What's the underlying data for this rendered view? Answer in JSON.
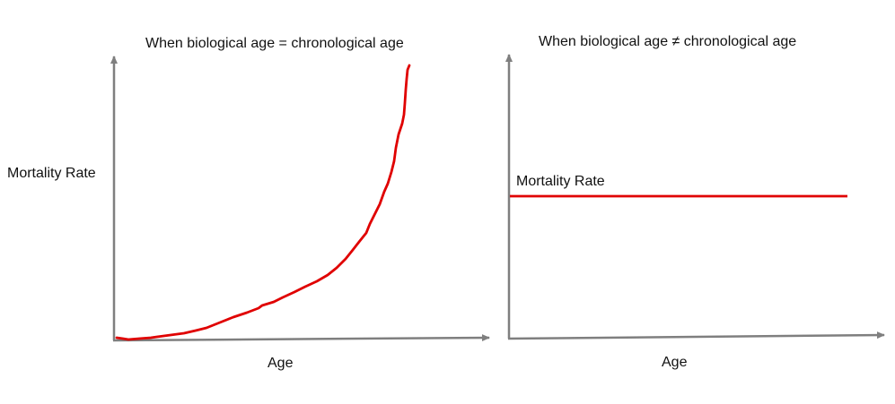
{
  "figure": {
    "left_panel": {
      "title": "When biological age = chronological age",
      "y_label": "Mortality Rate",
      "x_label": "Age"
    },
    "right_panel": {
      "title": "When biological age ≠ chronological age",
      "line_label": "Mortality Rate",
      "x_label": "Age"
    }
  },
  "colors": {
    "axis": "#7f7f7f",
    "curve": "#e00000",
    "text": "#111111"
  }
}
